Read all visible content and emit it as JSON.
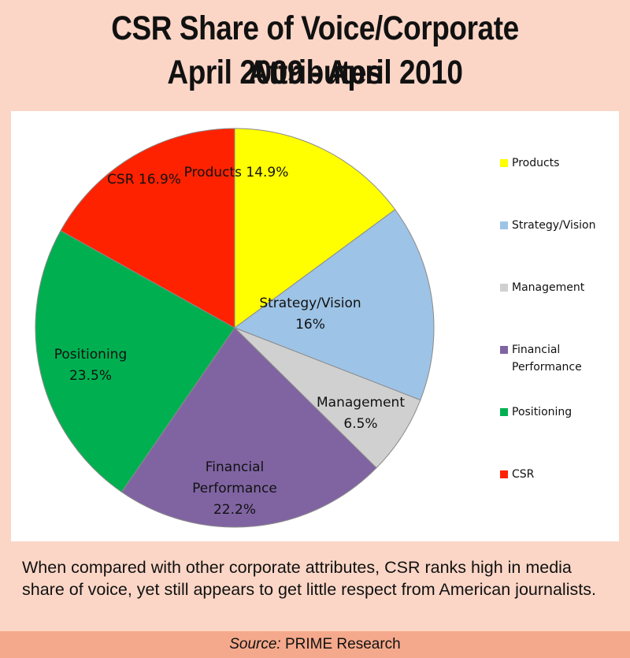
{
  "title": {
    "line1": "CSR Share of Voice/Corporate Attributes",
    "line2": "April 2009 - April 2010"
  },
  "caption": "When compared with other corporate attributes, CSR ranks high in media share of voice, yet still appears to get little respect from American journalists.",
  "source": {
    "label": "Source:",
    "text": "PRIME Research"
  },
  "chart_data": {
    "type": "pie",
    "title": "",
    "legend_position": "right",
    "slices": [
      {
        "name": "Products",
        "value": 14.9,
        "color": "#ffff00",
        "label_lines": [
          "Products 14.9%"
        ]
      },
      {
        "name": "Strategy/Vision",
        "value": 16.0,
        "color": "#9dc3e6",
        "label_lines": [
          "Strategy/Vision",
          "16%"
        ]
      },
      {
        "name": "Management",
        "value": 6.5,
        "color": "#d0d0d0",
        "label_lines": [
          "Management",
          "6.5%"
        ]
      },
      {
        "name": "Financial Performance",
        "value": 22.2,
        "color": "#8064a2",
        "label_lines": [
          "Financial",
          "Performance",
          "22.2%"
        ]
      },
      {
        "name": "Positioning",
        "value": 23.5,
        "color": "#00b050",
        "label_lines": [
          "Positioning",
          "23.5%"
        ]
      },
      {
        "name": "CSR",
        "value": 16.9,
        "color": "#ff2200",
        "label_lines": [
          "CSR 16.9%"
        ]
      }
    ],
    "legend": [
      {
        "lines": [
          "Products"
        ],
        "color": "#ffff00"
      },
      {
        "lines": [
          "Strategy/Vision"
        ],
        "color": "#9dc3e6"
      },
      {
        "lines": [
          "Management"
        ],
        "color": "#d0d0d0"
      },
      {
        "lines": [
          "Financial",
          "Performance"
        ],
        "color": "#8064a2"
      },
      {
        "lines": [
          "Positioning"
        ],
        "color": "#00b050"
      },
      {
        "lines": [
          "CSR"
        ],
        "color": "#ff2200"
      }
    ]
  }
}
